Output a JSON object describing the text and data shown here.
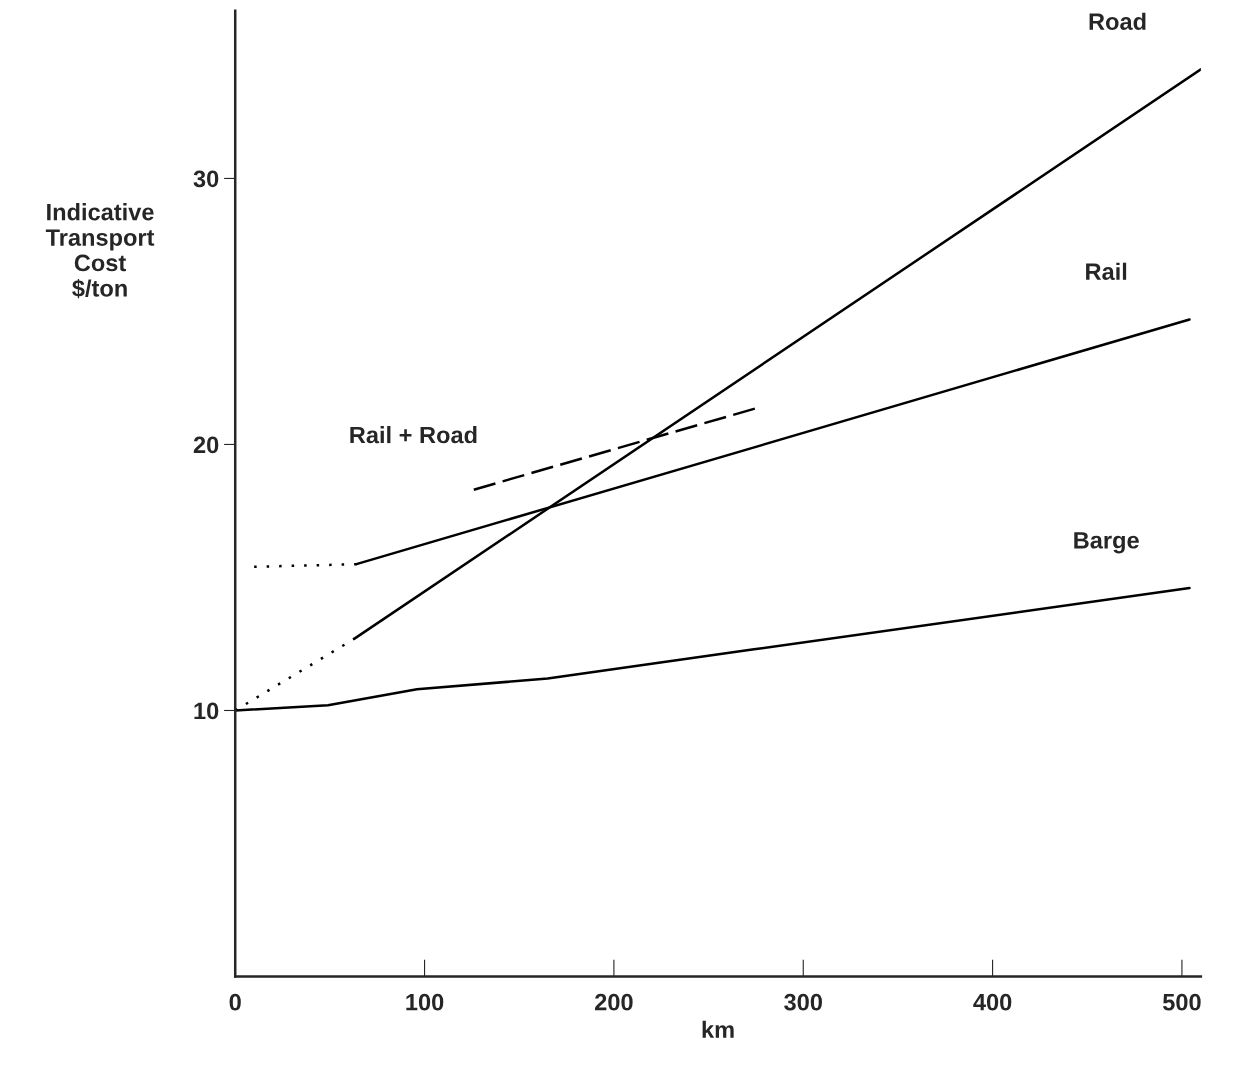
{
  "chart_data": {
    "type": "line",
    "xlabel": "km",
    "ylabel": "Indicative\nTransport\nCost\n$/ton",
    "xlim": [
      0,
      510
    ],
    "ylim": [
      0,
      36.3
    ],
    "xticks": [
      0,
      100,
      200,
      300,
      400,
      500
    ],
    "yticks": [
      10,
      20,
      30
    ],
    "grid": false,
    "legend": false,
    "marker": "none",
    "series": [
      {
        "name": "Road",
        "color": "#000000",
        "line_style": "solid",
        "x": [
          63,
          510
        ],
        "values": [
          12.7,
          34.1
        ]
      },
      {
        "color": "#000000",
        "line_style": "dotted",
        "x": [
          0,
          63
        ],
        "values": [
          10,
          12.7
        ]
      },
      {
        "name": "Rail",
        "color": "#000000",
        "line_style": "solid",
        "x": [
          64,
          504
        ],
        "values": [
          15.5,
          24.7
        ]
      },
      {
        "color": "#000000",
        "line_style": "dotted",
        "x": [
          10,
          64
        ],
        "values": [
          15.4,
          15.5
        ]
      },
      {
        "name": "Barge",
        "color": "#000000",
        "line_style": "solid",
        "x": [
          0,
          49,
          96,
          165,
          274,
          504
        ],
        "values": [
          10,
          10.2,
          10.8,
          11.2,
          12.3,
          14.6
        ]
      },
      {
        "name": "Rail + Road",
        "color": "#000000",
        "line_style": "dashed",
        "x": [
          126,
          277
        ],
        "values": [
          18.3,
          21.4
        ]
      }
    ]
  }
}
